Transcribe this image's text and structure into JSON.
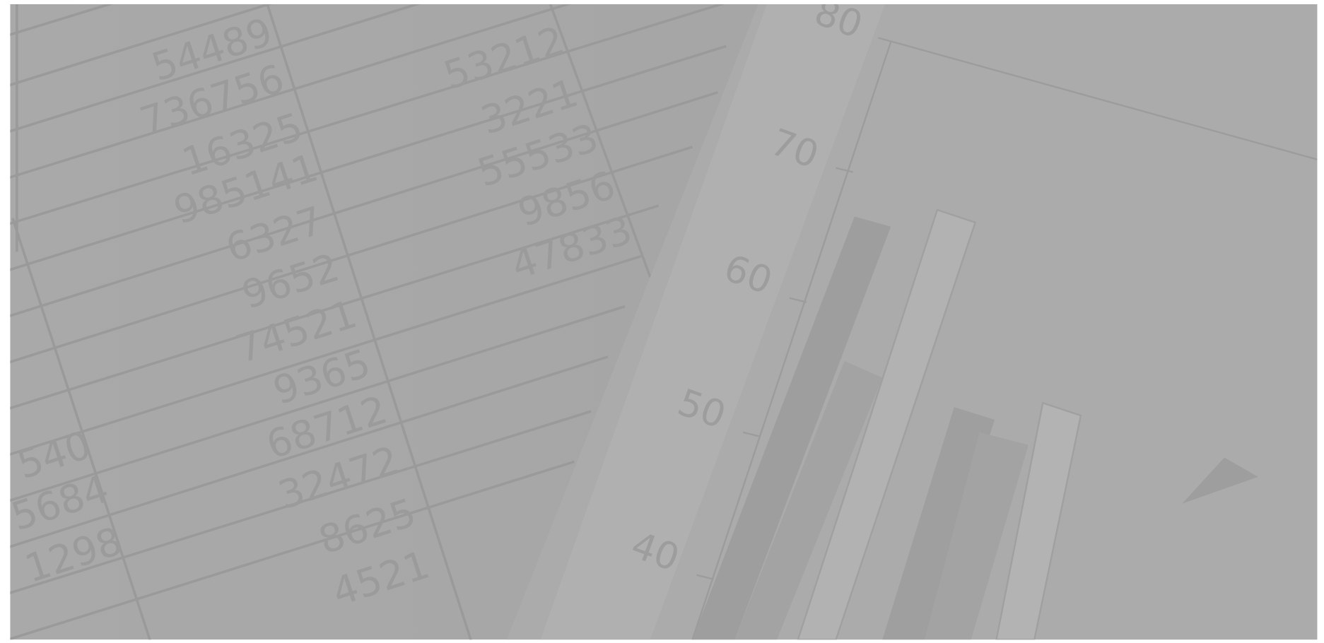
{
  "photo": {
    "spreadsheet": {
      "column_a": [
        "540",
        "5684",
        "1298"
      ],
      "column_b": [
        "54489",
        "736756",
        "16325",
        "985141",
        "6327",
        "9652",
        "74521",
        "9365",
        "68712",
        "32472",
        "8625",
        "4521"
      ],
      "column_c": [
        "53212",
        "3221",
        "55533",
        "9856",
        "47833"
      ]
    },
    "chart_axis_labels": [
      "80",
      "70",
      "60",
      "50",
      "40"
    ]
  }
}
